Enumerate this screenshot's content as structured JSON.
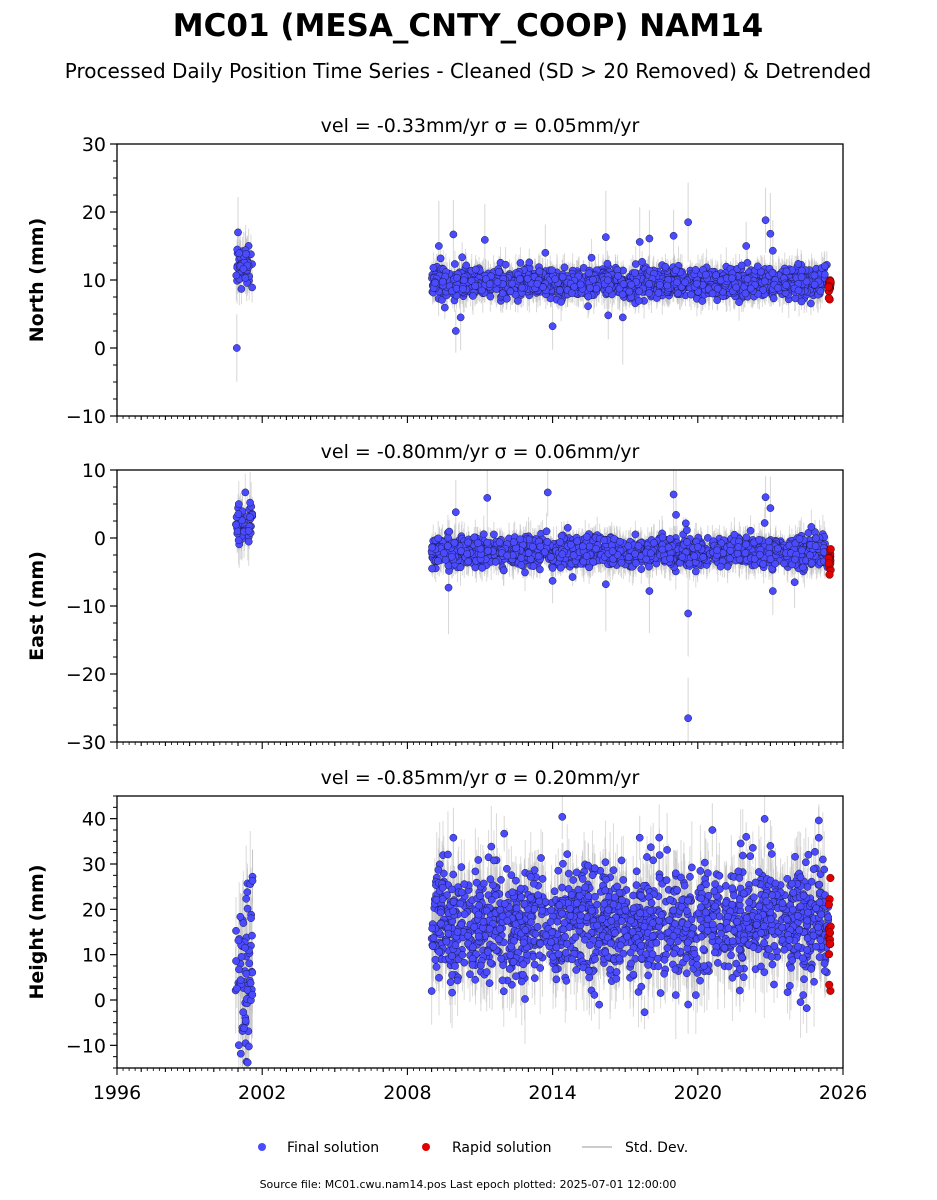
{
  "chart_data": {
    "type": "scatter",
    "title": "MC01 (MESA_CNTY_COOP) NAM14",
    "subtitle": "Processed Daily Position Time Series - Cleaned (SD > 20 Removed) & Detrended",
    "x_ticks": [
      "1996",
      "2002",
      "2008",
      "2014",
      "2020",
      "2026"
    ],
    "xlim": [
      1996,
      2026
    ],
    "legend": {
      "placement": "bottom-center",
      "entries": [
        {
          "label": "Final solution",
          "color": "#4a4aff",
          "marker": "circle"
        },
        {
          "label": "Rapid solution",
          "color": "#e00000",
          "marker": "circle"
        },
        {
          "label": "Std. Dev.",
          "color": "#cccccc",
          "marker": "line"
        }
      ]
    },
    "footer": "Source file: MC01.cwu.nam14.pos  Last epoch plotted: 2025-07-01 12:00:00",
    "colors": {
      "final": "#4a4aff",
      "rapid": "#e00000",
      "std": "#bbbbbb",
      "edge": "#1a1a4a"
    },
    "panels": [
      {
        "title": "vel = -0.33mm/yr   σ = 0.05mm/yr",
        "ylabel": "North (mm)",
        "ylim": [
          -10,
          30
        ],
        "yticks": [
          -10,
          0,
          10,
          20,
          30
        ],
        "ytick_labels": [
          "−10",
          "0",
          "10",
          "20",
          "30"
        ],
        "segments": [
          {
            "start": 2000.9,
            "end": 2001.6,
            "mean": 12.3,
            "spread": 1.5,
            "err": 3,
            "n": 55
          },
          {
            "start": 2009.0,
            "end": 2025.4,
            "mean": 9.6,
            "spread": 1.1,
            "err": 2.2,
            "n": 1500
          }
        ],
        "outliers": [
          [
            2000.95,
            0
          ],
          [
            2001.0,
            17.0
          ],
          [
            2009.3,
            15.0
          ],
          [
            2009.9,
            16.7
          ],
          [
            2010.0,
            2.5
          ],
          [
            2010.2,
            4.5
          ],
          [
            2011.2,
            15.9
          ],
          [
            2013.7,
            14.0
          ],
          [
            2014.0,
            3.2
          ],
          [
            2016.2,
            16.3
          ],
          [
            2016.3,
            4.8
          ],
          [
            2016.9,
            4.5
          ],
          [
            2017.6,
            15.6
          ],
          [
            2018.0,
            16.1
          ],
          [
            2019.0,
            16.5
          ],
          [
            2019.6,
            18.5
          ],
          [
            2022.0,
            15.0
          ],
          [
            2022.8,
            18.8
          ],
          [
            2023.0,
            16.8
          ],
          [
            2023.1,
            14.3
          ]
        ],
        "rapid": {
          "start": 2025.4,
          "end": 2025.5,
          "mean": 8.5,
          "spread": 0.9,
          "n": 14
        }
      },
      {
        "title": "vel = -0.80mm/yr   σ = 0.06mm/yr",
        "ylabel": "East (mm)",
        "ylim": [
          -30,
          10
        ],
        "yticks": [
          -30,
          -20,
          -10,
          0,
          10
        ],
        "ytick_labels": [
          "−30",
          "−20",
          "−10",
          "0",
          "10"
        ],
        "segments": [
          {
            "start": 2000.9,
            "end": 2001.6,
            "mean": 2.0,
            "spread": 1.5,
            "err": 3,
            "n": 55
          },
          {
            "start": 2009.0,
            "end": 2025.4,
            "mean": -2.0,
            "spread": 1.1,
            "err": 2.2,
            "n": 1500
          }
        ],
        "outliers": [
          [
            2001.5,
            5.2
          ],
          [
            2009.7,
            -7.3
          ],
          [
            2010.0,
            3.8
          ],
          [
            2011.3,
            5.9
          ],
          [
            2013.8,
            6.7
          ],
          [
            2014.0,
            -6.3
          ],
          [
            2016.2,
            -6.8
          ],
          [
            2018.0,
            -7.8
          ],
          [
            2019.0,
            6.4
          ],
          [
            2019.1,
            3.4
          ],
          [
            2019.6,
            -11.1
          ],
          [
            2019.6,
            -26.5
          ],
          [
            2022.8,
            6.0
          ],
          [
            2023.0,
            4.4
          ],
          [
            2023.1,
            -7.8
          ],
          [
            2024.0,
            -6.5
          ]
        ],
        "rapid": {
          "start": 2025.4,
          "end": 2025.5,
          "mean": -3.2,
          "spread": 0.9,
          "n": 14
        }
      },
      {
        "title": "vel = -0.85mm/yr   σ = 0.20mm/yr",
        "ylabel": "Height (mm)",
        "ylim": [
          -15,
          45
        ],
        "yticks": [
          -10,
          0,
          10,
          20,
          30,
          40
        ],
        "ytick_labels": [
          "−10",
          "0",
          "10",
          "20",
          "30",
          "40"
        ],
        "segments": [
          {
            "start": 2000.9,
            "end": 2001.6,
            "mean": 5.0,
            "spread": 8.0,
            "err": 10,
            "n": 70
          },
          {
            "start": 2009.0,
            "end": 2025.4,
            "mean": 17.0,
            "spread": 6.0,
            "err": 8,
            "n": 1600
          }
        ],
        "outliers": [
          [
            2001.6,
            27.2
          ],
          [
            2001.6,
            26.3
          ],
          [
            2001.4,
            -13.8
          ],
          [
            2009.9,
            35.8
          ],
          [
            2012.0,
            36.7
          ],
          [
            2014.4,
            40.4
          ],
          [
            2017.6,
            35.8
          ],
          [
            2020.6,
            37.5
          ],
          [
            2022.0,
            36.0
          ],
          [
            2023.0,
            34.0
          ],
          [
            2025.0,
            39.6
          ],
          [
            2025.0,
            35.8
          ],
          [
            2017.8,
            -2.7
          ],
          [
            2019.6,
            -1.0
          ],
          [
            2024.5,
            -1.8
          ]
        ],
        "rapid": {
          "start": 2025.4,
          "end": 2025.5,
          "mean": 15.0,
          "spread": 6.0,
          "n": 16
        }
      }
    ]
  }
}
